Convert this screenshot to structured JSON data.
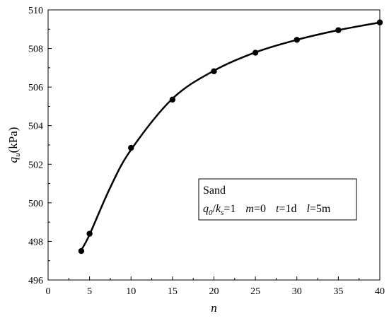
{
  "chart_data": {
    "type": "scatter",
    "x_values": [
      4,
      5,
      10,
      15,
      20,
      25,
      30,
      35,
      40
    ],
    "y_values": [
      497.5,
      498.4,
      502.85,
      505.35,
      506.82,
      507.78,
      508.45,
      508.95,
      509.35
    ],
    "curve": {
      "x": [
        4,
        5,
        7.5,
        10,
        15,
        20,
        25,
        30,
        35,
        40
      ],
      "y": [
        497.55,
        498.35,
        500.8,
        502.75,
        505.4,
        506.85,
        507.8,
        508.45,
        508.95,
        509.35
      ]
    },
    "xlim": [
      0,
      40
    ],
    "ylim": [
      496,
      510
    ],
    "x_ticks": [
      "0",
      "5",
      "10",
      "15",
      "20",
      "25",
      "30",
      "35",
      "40"
    ],
    "y_ticks": [
      "496",
      "498",
      "500",
      "502",
      "504",
      "506",
      "508",
      "510"
    ],
    "xlabel": "n",
    "ylabel": {
      "symbol": "q",
      "subscript": "u",
      "unit": "(kPa)"
    },
    "legend": {
      "line1": "Sand",
      "q0": "q",
      "q0_sub": "0",
      "slash": "/",
      "ks": "k",
      "ks_sub": "s",
      "ratio_val": "=1",
      "m": "m",
      "m_val": "=0",
      "t": "t",
      "t_val": "=1d",
      "l": "l",
      "l_val": "=5m",
      "placement": "center-right"
    },
    "colors": {
      "line": "#000000",
      "marker": "#000000"
    }
  }
}
